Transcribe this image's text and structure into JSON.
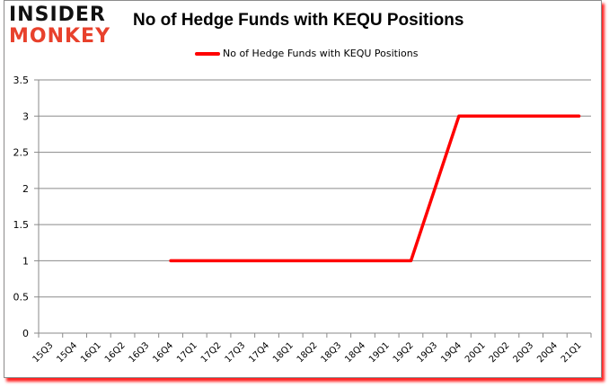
{
  "logo": {
    "line1": "INSIDER",
    "line2": "MONKEY"
  },
  "header": {
    "title": "No of Hedge Funds with KEQU Positions"
  },
  "legend": {
    "label": "No of Hedge Funds with KEQU Positions",
    "color": "#ff0000"
  },
  "chart_data": {
    "type": "line",
    "title": "No of Hedge Funds with KEQU Positions",
    "xlabel": "",
    "ylabel": "",
    "categories": [
      "15Q3",
      "15Q4",
      "16Q1",
      "16Q2",
      "16Q3",
      "16Q4",
      "17Q1",
      "17Q2",
      "17Q3",
      "17Q4",
      "18Q1",
      "18Q2",
      "18Q3",
      "18Q4",
      "19Q1",
      "19Q2",
      "19Q3",
      "19Q4",
      "20Q1",
      "20Q2",
      "20Q3",
      "20Q4",
      "21Q1"
    ],
    "series": [
      {
        "name": "No of Hedge Funds with KEQU Positions",
        "color": "#ff0000",
        "values": [
          null,
          null,
          null,
          null,
          null,
          1,
          1,
          1,
          1,
          1,
          1,
          1,
          1,
          1,
          1,
          1,
          2,
          3,
          3,
          3,
          3,
          3,
          3
        ]
      }
    ],
    "ylim": [
      0,
      3.5
    ],
    "yticks": [
      "0",
      "0.5",
      "1",
      "1.5",
      "2",
      "2.5",
      "3",
      "3.5"
    ],
    "grid": true,
    "legend_position": "top"
  }
}
